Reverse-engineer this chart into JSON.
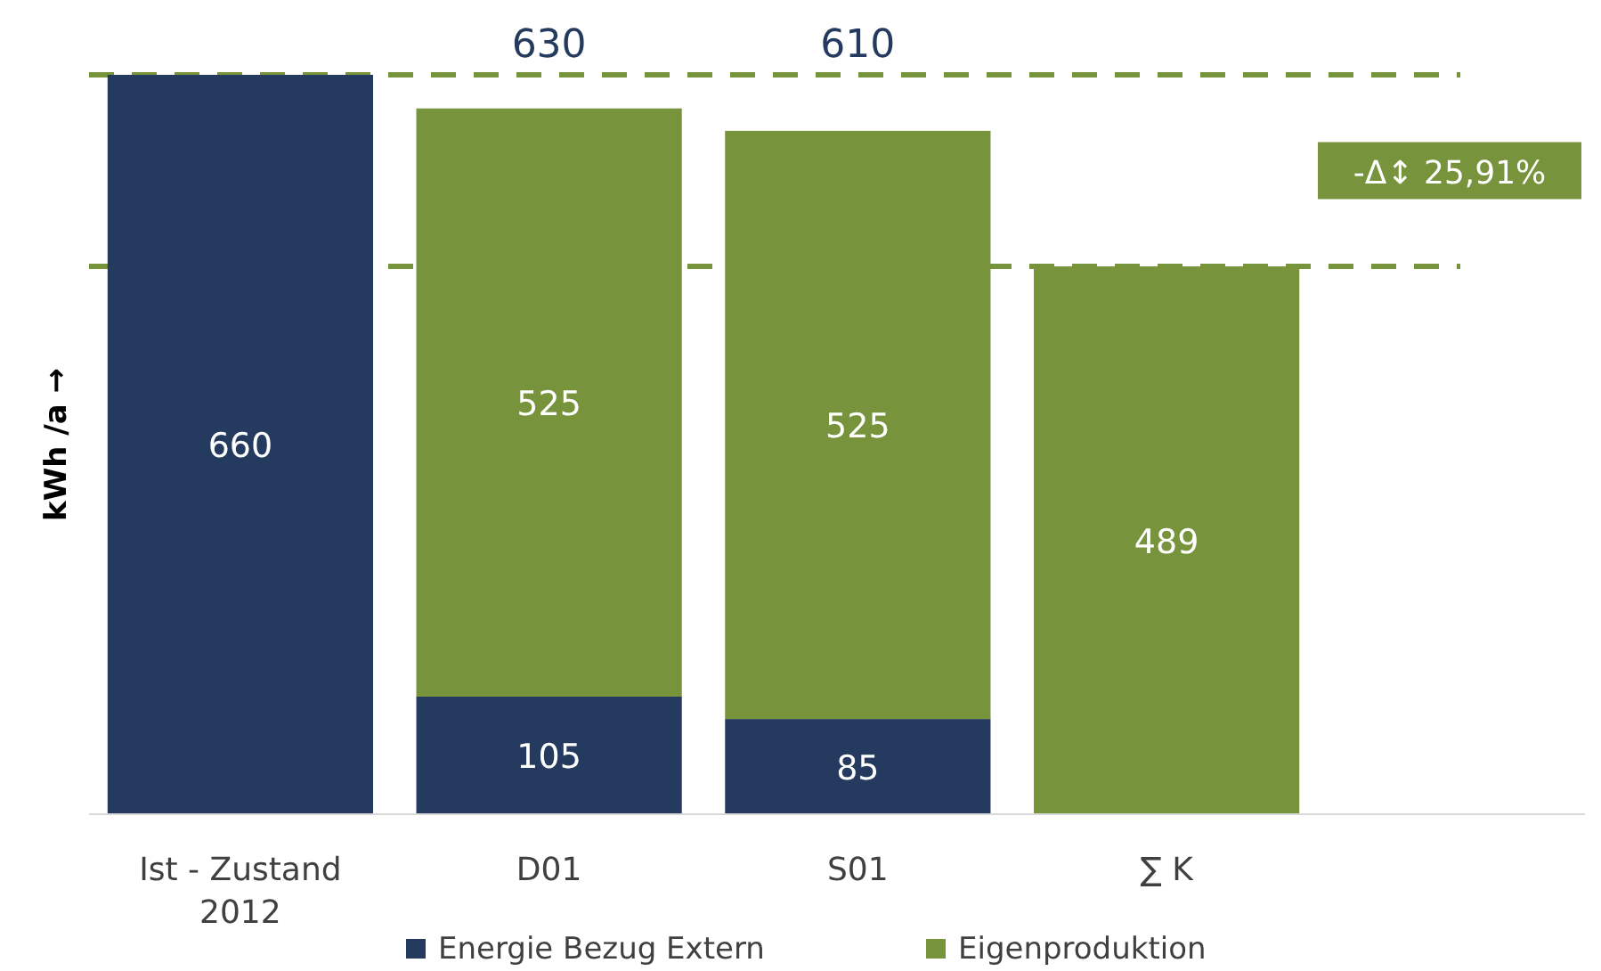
{
  "chart_data": {
    "type": "bar",
    "stacked": true,
    "ylabel": "kWh /a →",
    "categories": [
      "Ist - Zustand 2012",
      "D01",
      "S01",
      "∑ K"
    ],
    "series": [
      {
        "name": "Energie Bezug Extern",
        "color": "#243a5e",
        "values": [
          660,
          105,
          85,
          null
        ]
      },
      {
        "name": "Eigenproduktion",
        "color": "#77933c",
        "values": [
          null,
          525,
          525,
          489
        ]
      }
    ],
    "data_labels": true,
    "totals": [
      null,
      "630",
      "610",
      null
    ],
    "ref_lines": [
      {
        "axis": "y",
        "value": 660,
        "color": "#77933c",
        "line_style": "dashed"
      },
      {
        "axis": "y",
        "value": 489,
        "color": "#77933c",
        "line_style": "dashed"
      }
    ],
    "annotations": [
      "-Δ↕ 25,91%"
    ],
    "legend": "bottom"
  }
}
